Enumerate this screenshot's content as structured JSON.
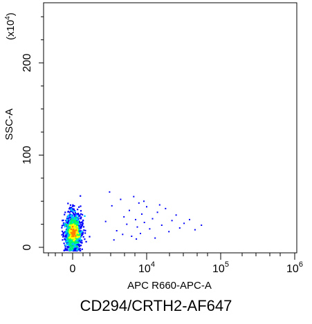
{
  "chart_data": {
    "type": "scatter",
    "subtype": "flow-cytometry-density-dot-plot",
    "title": "",
    "caption": "CD294/CRTH2-AF647",
    "xlabel": "APC R660-APC-A",
    "ylabel": "SSC-A",
    "y_multiplier_label": "(x10",
    "y_multiplier_exponent": "4",
    "y_multiplier_close": ")",
    "x_scale": "biexponential",
    "x_tick_values": [
      0,
      10000,
      100000,
      1000000
    ],
    "x_tick_labels": [
      {
        "base": "0",
        "exp": ""
      },
      {
        "base": "10",
        "exp": "4"
      },
      {
        "base": "10",
        "exp": "5"
      },
      {
        "base": "10",
        "exp": "6"
      }
    ],
    "ylim": [
      0,
      265
    ],
    "y_ticks": [
      0,
      100,
      200
    ],
    "y_tick_labels": [
      "0",
      "100",
      "200"
    ],
    "grid": false,
    "legend": "none",
    "colors": {
      "low_density": "#0000ff",
      "mid_low_density": "#00c8ff",
      "mid_density": "#00ff60",
      "high_density": "#ffff00",
      "peak_density": "#ff8000",
      "axis": "#000000"
    },
    "populations": [
      {
        "name": "main-cluster",
        "x_center": 0,
        "y_center": 17,
        "density": "high"
      },
      {
        "name": "scattered-positive-events",
        "x_range": [
          1000,
          60000
        ],
        "y_range": [
          5,
          60
        ],
        "density": "low"
      }
    ],
    "sparse_points": [
      {
        "x": 1500,
        "y": 28
      },
      {
        "x": 2000,
        "y": 45
      },
      {
        "x": 2500,
        "y": 18
      },
      {
        "x": 3000,
        "y": 52
      },
      {
        "x": 3500,
        "y": 33
      },
      {
        "x": 4000,
        "y": 25
      },
      {
        "x": 4500,
        "y": 40
      },
      {
        "x": 5000,
        "y": 12
      },
      {
        "x": 5500,
        "y": 55
      },
      {
        "x": 6000,
        "y": 30
      },
      {
        "x": 6500,
        "y": 22
      },
      {
        "x": 7000,
        "y": 48
      },
      {
        "x": 7500,
        "y": 15
      },
      {
        "x": 8000,
        "y": 36
      },
      {
        "x": 9000,
        "y": 27
      },
      {
        "x": 10000,
        "y": 44
      },
      {
        "x": 11000,
        "y": 20
      },
      {
        "x": 12000,
        "y": 31
      },
      {
        "x": 13000,
        "y": 10
      },
      {
        "x": 14000,
        "y": 38
      },
      {
        "x": 16000,
        "y": 24
      },
      {
        "x": 18000,
        "y": 42
      },
      {
        "x": 20000,
        "y": 17
      },
      {
        "x": 22000,
        "y": 29
      },
      {
        "x": 25000,
        "y": 35
      },
      {
        "x": 28000,
        "y": 21
      },
      {
        "x": 32000,
        "y": 26
      },
      {
        "x": 38000,
        "y": 30
      },
      {
        "x": 45000,
        "y": 19
      },
      {
        "x": 55000,
        "y": 24
      },
      {
        "x": 2200,
        "y": 8
      },
      {
        "x": 3300,
        "y": 14
      },
      {
        "x": 6200,
        "y": 9
      },
      {
        "x": 8800,
        "y": 50
      },
      {
        "x": 15000,
        "y": 46
      },
      {
        "x": 1800,
        "y": 60
      }
    ]
  }
}
